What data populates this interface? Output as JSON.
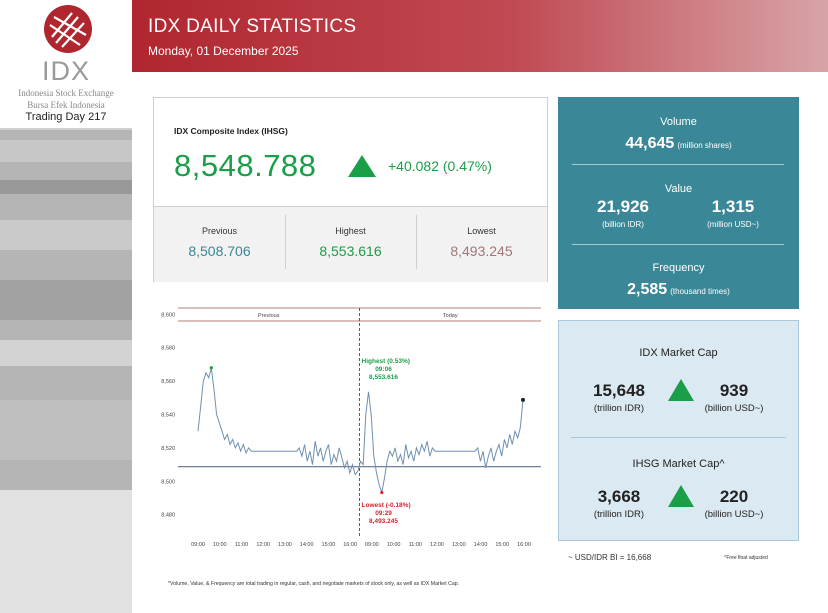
{
  "branding": {
    "logo_text": "IDX",
    "subtitle_line1": "Indonesia Stock Exchange",
    "subtitle_line2": "Bursa Efek Indonesia",
    "trading_day": "Trading Day 217",
    "brand_color": "#b0262f"
  },
  "header": {
    "title": "IDX DAILY STATISTICS",
    "date": "Monday, 01 December 2025"
  },
  "ihsg": {
    "label": "IDX Composite Index (IHSG)",
    "value": "8,548.788",
    "change": "+40.082 (0.47%)",
    "direction_icon": "up-triangle-icon",
    "previous_label": "Previous",
    "previous": "8,508.706",
    "highest_label": "Highest",
    "highest": "8,553.616",
    "lowest_label": "Lowest",
    "lowest": "8,493.245",
    "colors": {
      "up": "#1a9e47",
      "previous": "#3a8797",
      "lowest": "#a07878"
    }
  },
  "volume_card": {
    "volume_label": "Volume",
    "volume_value": "44,645",
    "volume_unit": "(million shares)",
    "value_label": "Value",
    "value_idr": "21,926",
    "value_idr_unit": "(billion IDR)",
    "value_usd": "1,315",
    "value_usd_unit": "(million USD~)",
    "frequency_label": "Frequency",
    "frequency_value": "2,585",
    "frequency_unit": "(thousand times)",
    "background": "#3a8797"
  },
  "market_cap": {
    "idx_label": "IDX Market Cap",
    "idx_idr": "15,648",
    "idx_idr_unit": "(trillion IDR)",
    "idx_usd": "939",
    "idx_usd_unit": "(billion USD~)",
    "ihsg_label": "IHSG Market Cap^",
    "ihsg_idr": "3,668",
    "ihsg_idr_unit": "(trillion IDR)",
    "ihsg_usd": "220",
    "ihsg_usd_unit": "(billion USD~)"
  },
  "notes": {
    "fx": "~ USD/IDR BI = 16,668",
    "free_float": "^Free float adjusted",
    "footnote": "*Volume, Value, & Frequency are total trading in regular, cash, and negotiate markets of stock only, as well as IDX Market Cap."
  },
  "chart_data": {
    "type": "line",
    "section_labels": [
      "Previous",
      "Today"
    ],
    "y_ticks": [
      "8,600",
      "8,580",
      "8,560",
      "8,540",
      "8,520",
      "8,500",
      "8,480"
    ],
    "y_tick_values": [
      8600,
      8580,
      8560,
      8540,
      8520,
      8500,
      8480
    ],
    "ylim": [
      8472,
      8605
    ],
    "x_ticks": [
      "09:00",
      "10:00",
      "11:00",
      "12:00",
      "13:00",
      "14:00",
      "15:00",
      "16:00",
      "09:00",
      "10:00",
      "11:00",
      "12:00",
      "13:00",
      "14:00",
      "15:00",
      "16:00"
    ],
    "previous_close": 8508.706,
    "series": [
      {
        "values": [
          8530,
          8545,
          8560,
          8565,
          8562,
          8568,
          8555,
          8540,
          8535,
          8530,
          8525,
          8528,
          8522,
          8525,
          8520,
          8523,
          8518,
          8522,
          8517,
          8520,
          8518,
          8518,
          8518,
          8518,
          8518,
          8518,
          8518,
          8518,
          8518,
          8518,
          8518,
          8518,
          8518,
          8518,
          8518,
          8518,
          8518,
          8518,
          8520,
          8515,
          8522,
          8512,
          8518,
          8510,
          8524,
          8515,
          8520,
          8512,
          8518,
          8522,
          8510,
          8516,
          8512,
          8520,
          8514,
          8508,
          8512,
          8505,
          8510,
          8504,
          8506,
          8512,
          8510,
          8540,
          8553.616,
          8540,
          8515,
          8505,
          8498,
          8493.245,
          8502,
          8512,
          8518,
          8515,
          8520,
          8512,
          8516,
          8510,
          8522,
          8514,
          8518,
          8512,
          8520,
          8516,
          8522,
          8518,
          8524,
          8515,
          8520,
          8518,
          8518,
          8518,
          8518,
          8518,
          8518,
          8518,
          8518,
          8518,
          8518,
          8518,
          8518,
          8518,
          8518,
          8518,
          8518,
          8520,
          8512,
          8518,
          8508,
          8515,
          8520,
          8512,
          8518,
          8522,
          8515,
          8525,
          8520,
          8528,
          8522,
          8530,
          8526,
          8532,
          8548.788
        ]
      }
    ],
    "annotations": {
      "high_title": "Highest (0.53%)",
      "high_time": "09:06",
      "high_value": "8,553.616",
      "low_title": "Lowest (-0.18%)",
      "low_time": "09:29",
      "low_value": "8,493.245",
      "colors": {
        "high": "#1a9e47",
        "low": "#d9232d",
        "line": "#6f8fb3",
        "prev_line": "#5a7391",
        "band": "#a05050"
      }
    }
  }
}
